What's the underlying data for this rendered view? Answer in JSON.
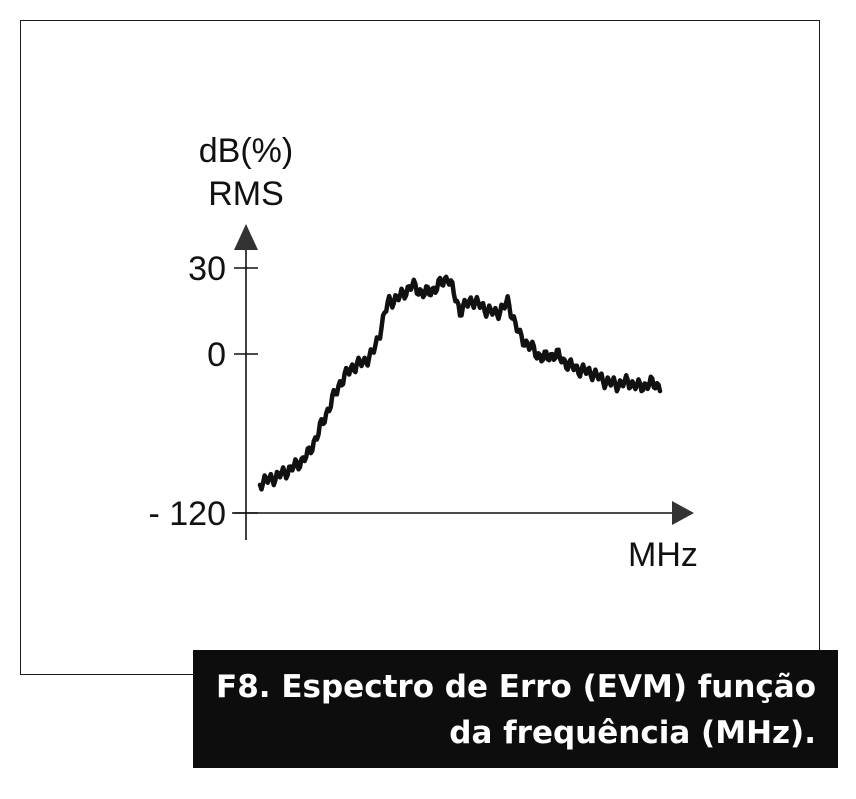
{
  "caption": {
    "line1": "F8. Espectro de Erro (EVM) função",
    "line2": "da frequência (MHz)."
  },
  "colors": {
    "ink": "#111111",
    "caption_bg": "#0d0d0d",
    "caption_text": "#ffffff"
  },
  "chart_data": {
    "type": "line",
    "title": "",
    "ylabel_line1": "dB(%)",
    "ylabel_line2": "RMS",
    "xlabel": "MHz",
    "y_ticks": [
      {
        "value": 30,
        "label": "30"
      },
      {
        "value": 0,
        "label": "0"
      },
      {
        "value": -120,
        "label": "- 120"
      }
    ],
    "ylim": [
      -120,
      30
    ],
    "grid": false,
    "legend": false,
    "series": [
      {
        "x": [
          0,
          0.022,
          0.045,
          0.07,
          0.095,
          0.12,
          0.145,
          0.17,
          0.2,
          0.23,
          0.26,
          0.29,
          0.32,
          0.35,
          0.38,
          0.41,
          0.44,
          0.47,
          0.5,
          0.53,
          0.56,
          0.59,
          0.62,
          0.65,
          0.68,
          0.71,
          0.74,
          0.77,
          0.8,
          0.83,
          0.86,
          0.89,
          0.92,
          0.95,
          0.975,
          1.0
        ],
        "y": [
          -97,
          -95,
          -92,
          -88,
          -83,
          -76,
          -60,
          -42,
          -22,
          -10,
          -6,
          3,
          18,
          20,
          24,
          21,
          23,
          27,
          15,
          19,
          16,
          14,
          18,
          6,
          2,
          -3,
          0,
          -8,
          -12,
          -14,
          -20,
          -23,
          -21,
          -25,
          -22,
          -24
        ]
      }
    ]
  }
}
